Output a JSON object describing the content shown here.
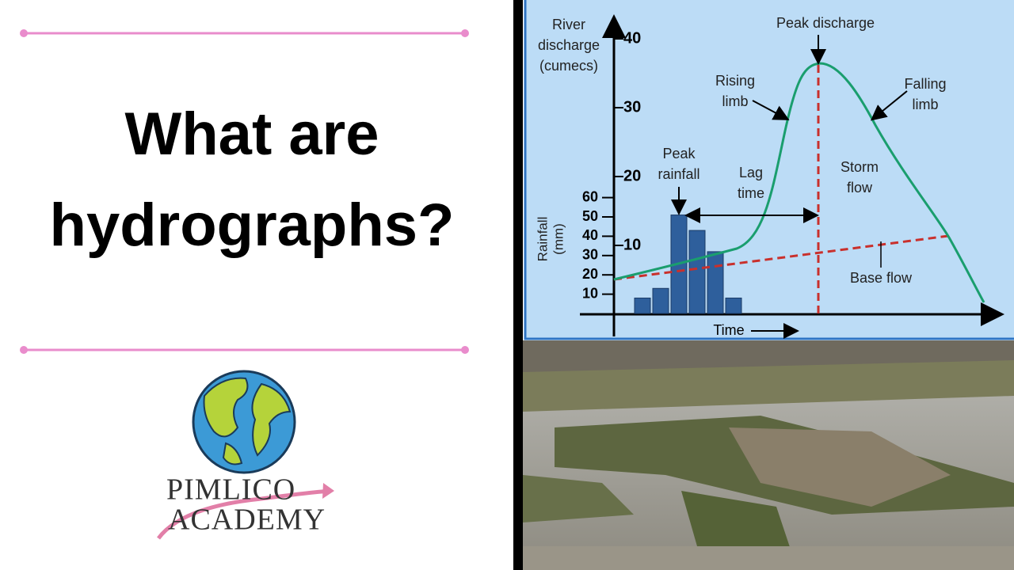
{
  "title": [
    "What are",
    "hydrographs?"
  ],
  "logo": [
    "PIMLICO",
    "ACADEMY"
  ],
  "hydrograph": {
    "y_label": [
      "River",
      "discharge",
      "(cumecs)"
    ],
    "yticks": [
      10,
      20,
      30,
      40
    ],
    "y2_label": [
      "Rainfall",
      "(mm)"
    ],
    "y2ticks": [
      10,
      20,
      30,
      40,
      50,
      60
    ],
    "x_label": "Time",
    "rainfall": [
      8,
      13,
      51,
      43,
      32,
      8
    ],
    "annotations": {
      "peak_discharge": "Peak discharge",
      "rising_limb": [
        "Rising",
        "limb"
      ],
      "falling_limb": [
        "Falling",
        "limb"
      ],
      "peak_rainfall": [
        "Peak",
        "rainfall"
      ],
      "lag_time": [
        "Lag",
        "time"
      ],
      "storm_flow": [
        "Storm",
        "flow"
      ],
      "base_flow": "Base flow"
    }
  }
}
